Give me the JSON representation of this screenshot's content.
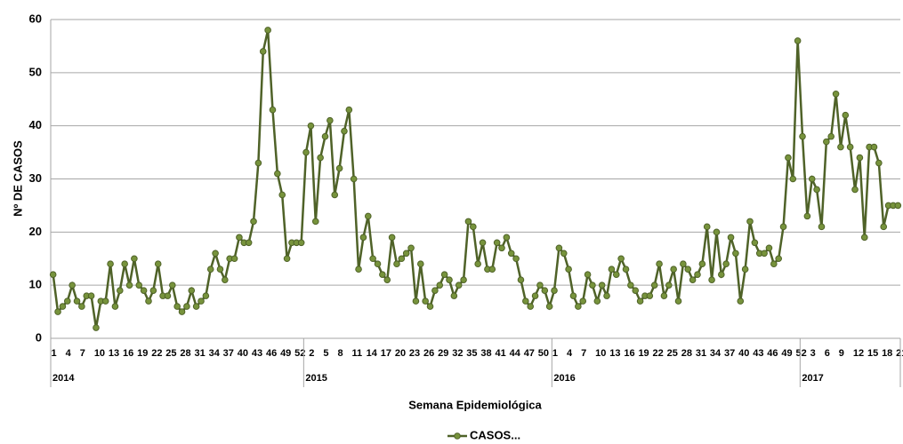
{
  "chart_data": {
    "type": "line",
    "y_label": "Nº DE CASOS",
    "x_label": "Semana Epidemiológica",
    "ylim": [
      0,
      60
    ],
    "yticks": [
      0,
      10,
      20,
      30,
      40,
      50,
      60
    ],
    "grid": true,
    "legend": "bottom",
    "categories": [
      "1",
      null,
      null,
      "4",
      null,
      null,
      "7",
      null,
      null,
      "10",
      null,
      null,
      "13",
      null,
      null,
      "16",
      null,
      null,
      "19",
      null,
      null,
      "22",
      null,
      null,
      "25",
      null,
      null,
      "28",
      null,
      null,
      "31",
      null,
      null,
      "34",
      null,
      null,
      "37",
      null,
      null,
      "40",
      null,
      null,
      "43",
      null,
      null,
      "46",
      null,
      null,
      "49",
      null,
      null,
      "52",
      null,
      null,
      "2",
      null,
      null,
      "5",
      null,
      null,
      "8",
      null,
      null,
      "11",
      null,
      null,
      "14",
      null,
      null,
      "17",
      null,
      null,
      "20",
      null,
      null,
      "23",
      null,
      null,
      "26",
      null,
      null,
      "29",
      null,
      null,
      "32",
      null,
      null,
      "35",
      null,
      null,
      "38",
      null,
      null,
      "41",
      null,
      null,
      "44",
      null,
      null,
      "47",
      null,
      null,
      "50",
      null,
      null,
      "1",
      null,
      null,
      "4",
      null,
      null,
      "7",
      null,
      null,
      "10",
      null,
      null,
      "13",
      null,
      null,
      "16",
      null,
      null,
      "19",
      null,
      null,
      "22",
      null,
      null,
      "25",
      null,
      null,
      "28",
      null,
      null,
      "31",
      null,
      null,
      "34",
      null,
      null,
      "37",
      null,
      null,
      "40",
      null,
      null,
      "43",
      null,
      null,
      "46",
      null,
      null,
      "49",
      null,
      null,
      "52",
      null,
      null,
      "3",
      null,
      null,
      "6",
      null,
      null,
      "9",
      null,
      null,
      "12",
      null,
      null,
      "15",
      null,
      null,
      "18",
      null,
      null,
      "21"
    ],
    "years": [
      "2014",
      null,
      null,
      null,
      null,
      null,
      null,
      null,
      null,
      null,
      null,
      null,
      null,
      null,
      null,
      null,
      null,
      null,
      null,
      null,
      null,
      null,
      null,
      null,
      null,
      null,
      null,
      null,
      null,
      null,
      null,
      null,
      null,
      null,
      null,
      null,
      null,
      null,
      null,
      null,
      null,
      null,
      null,
      null,
      null,
      null,
      null,
      null,
      null,
      null,
      null,
      null,
      null,
      "2015",
      null,
      null,
      null,
      null,
      null,
      null,
      null,
      null,
      null,
      null,
      null,
      null,
      null,
      null,
      null,
      null,
      null,
      null,
      null,
      null,
      null,
      null,
      null,
      null,
      null,
      null,
      null,
      null,
      null,
      null,
      null,
      null,
      null,
      null,
      null,
      null,
      null,
      null,
      null,
      null,
      null,
      null,
      null,
      null,
      null,
      null,
      null,
      null,
      null,
      null,
      null,
      "2016",
      null,
      null,
      null,
      null,
      null,
      null,
      null,
      null,
      null,
      null,
      null,
      null,
      null,
      null,
      null,
      null,
      null,
      null,
      null,
      null,
      null,
      null,
      null,
      null,
      null,
      null,
      null,
      null,
      null,
      null,
      null,
      null,
      null,
      null,
      null,
      null,
      null,
      null,
      null,
      null,
      null,
      null,
      null,
      null,
      null,
      null,
      null,
      null,
      null,
      null,
      null,
      "2017",
      null,
      null,
      null,
      null,
      null,
      null,
      null,
      null,
      null,
      null,
      null,
      null,
      null,
      null,
      null,
      null,
      null,
      null,
      null
    ],
    "series": [
      {
        "name": "CASOS...",
        "color": "#4f6228",
        "marker_color": "#77933c",
        "values": [
          12,
          5,
          6,
          7,
          10,
          7,
          6,
          8,
          8,
          2,
          7,
          7,
          14,
          6,
          9,
          14,
          10,
          15,
          10,
          9,
          7,
          9,
          14,
          8,
          8,
          10,
          6,
          5,
          6,
          9,
          6,
          7,
          8,
          13,
          16,
          13,
          11,
          15,
          15,
          19,
          18,
          18,
          22,
          33,
          54,
          58,
          43,
          31,
          27,
          15,
          18,
          18,
          18,
          35,
          40,
          22,
          34,
          38,
          41,
          27,
          32,
          39,
          43,
          30,
          13,
          19,
          23,
          15,
          14,
          12,
          11,
          19,
          14,
          15,
          16,
          17,
          7,
          14,
          7,
          6,
          9,
          10,
          12,
          11,
          8,
          10,
          11,
          22,
          21,
          14,
          18,
          13,
          13,
          18,
          17,
          19,
          16,
          15,
          11,
          7,
          6,
          8,
          10,
          9,
          6,
          9,
          17,
          16,
          13,
          8,
          6,
          7,
          12,
          10,
          7,
          10,
          8,
          13,
          12,
          15,
          13,
          10,
          9,
          7,
          8,
          8,
          10,
          14,
          8,
          10,
          13,
          7,
          14,
          13,
          11,
          12,
          14,
          21,
          11,
          20,
          12,
          14,
          19,
          16,
          7,
          13,
          22,
          18,
          16,
          16,
          17,
          14,
          15,
          21,
          34,
          30,
          56,
          38,
          23,
          30,
          28,
          21,
          37,
          38,
          46,
          36,
          42,
          36,
          28,
          34,
          19,
          36,
          36,
          33,
          21,
          25,
          25,
          25
        ]
      }
    ]
  }
}
